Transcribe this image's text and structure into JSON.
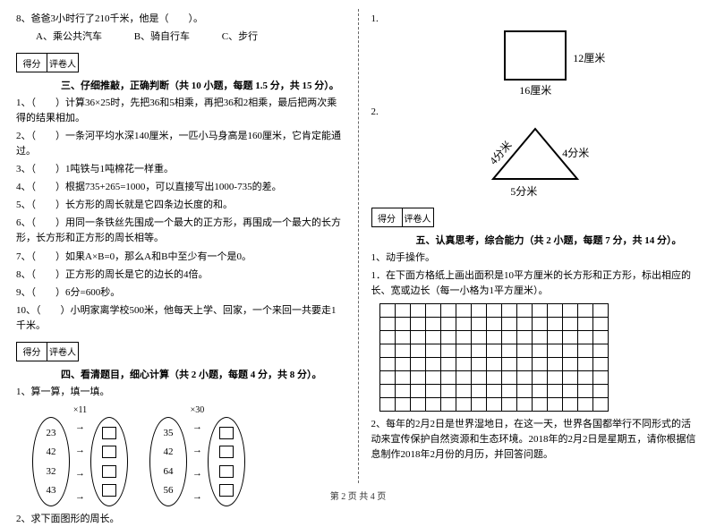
{
  "left": {
    "q8": "8、爸爸3小时行了210千米，他是（　　）。",
    "q8a": "A、乘公共汽车",
    "q8b": "B、骑自行车",
    "q8c": "C、步行",
    "score_l": "得分",
    "score_r": "评卷人",
    "sec3": "三、仔细推敲，正确判断（共 10 小题，每题 1.5 分，共 15 分）。",
    "j1": "1、（　　）计算36×25时，先把36和5相乘，再把36和2相乘，最后把两次乘得的结果相加。",
    "j2": "2、（　　）一条河平均水深140厘米，一匹小马身高是160厘米，它肯定能通过。",
    "j3": "3、（　　）1吨铁与1吨棉花一样重。",
    "j4": "4、（　　）根据735+265=1000，可以直接写出1000-735的差。",
    "j5": "5、（　　）长方形的周长就是它四条边长度的和。",
    "j6": "6、（　　）用同一条铁丝先围成一个最大的正方形，再围成一个最大的长方形，长方形和正方形的周长相等。",
    "j7": "7、（　　）如果A×B=0，那么A和B中至少有一个是0。",
    "j8": "8、（　　）正方形的周长是它的边长的4倍。",
    "j9": "9、（　　）6分=600秒。",
    "j10": "10、（　　）小明家离学校500米，他每天上学、回家，一个来回一共要走1千米。",
    "sec4": "四、看清题目，细心计算（共 2 小题，每题 4 分，共 8 分）。",
    "calc_title": "1、算一算，填一填。",
    "m1": "×11",
    "m2": "×30",
    "g1": [
      "23",
      "42",
      "32",
      "43"
    ],
    "g2": [
      "35",
      "42",
      "64",
      "56"
    ],
    "q_perim": "2、求下面图形的周长。"
  },
  "right": {
    "rect_r": "12厘米",
    "rect_b": "16厘米",
    "tri_l": "4分米",
    "tri_r": "4分米",
    "tri_b": "5分米",
    "score_l": "得分",
    "score_r": "评卷人",
    "sec5": "五、认真思考，综合能力（共 2 小题，每题 7 分，共 14 分）。",
    "hand": "1、动手操作。",
    "grid_q": "1．在下面方格纸上画出面积是10平方厘米的长方形和正方形，标出相应的长、宽或边长（每一小格为1平方厘米）。",
    "q2": "2、每年的2月2日是世界湿地日，在这一天，世界各国都举行不同形式的活动来宣传保护自然资源和生态环境。2018年的2月2日是星期五，请你根据信息制作2018年2月份的月历，并回答问题。",
    "n1": "1.",
    "n2": "2."
  },
  "footer": "第 2 页 共 4 页",
  "grid": {
    "rows": 8,
    "cols": 15
  },
  "colors": {
    "bg": "#ffffff",
    "fg": "#000000",
    "dash": "#666666"
  }
}
